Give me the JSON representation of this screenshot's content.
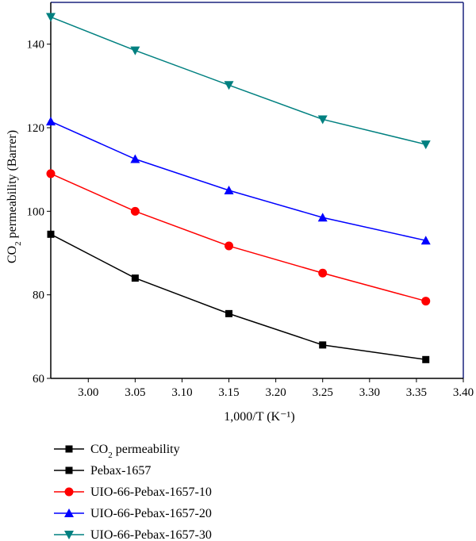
{
  "chart_data": {
    "type": "line",
    "title": "",
    "xlabel": "1,000/T (K⁻¹)",
    "ylabel": "CO2 permeability (Barrer)",
    "ylabel_parts": {
      "pre": "CO",
      "sub": "2",
      "post": " permeability (Barrer)"
    },
    "xlim": [
      2.96,
      3.4
    ],
    "ylim": [
      60,
      150
    ],
    "xticks": [
      "3.00",
      "3.05",
      "3.10",
      "3.15",
      "3.20",
      "3.25",
      "3.30",
      "3.35",
      "3.40"
    ],
    "yticks": [
      "60",
      "80",
      "100",
      "120",
      "140"
    ],
    "grid": false,
    "legend_position": "bottom",
    "legend_header": {
      "pre": "CO",
      "sub": "2",
      "post": " permeability"
    },
    "x": [
      2.96,
      3.05,
      3.15,
      3.25,
      3.36
    ],
    "series": [
      {
        "name": "Pebax-1657",
        "values": [
          94.5,
          84.0,
          75.5,
          68.0,
          64.5
        ],
        "color": "#000000",
        "marker": "square"
      },
      {
        "name": "UIO-66-Pebax-1657-10",
        "values": [
          109.0,
          100.0,
          91.7,
          85.2,
          78.5
        ],
        "color": "#ff0000",
        "marker": "circle"
      },
      {
        "name": "UIO-66-Pebax-1657-20",
        "values": [
          121.5,
          112.5,
          105.0,
          98.5,
          93.0
        ],
        "color": "#0000ff",
        "marker": "triangle-up"
      },
      {
        "name": "UIO-66-Pebax-1657-30",
        "values": [
          146.5,
          138.5,
          130.2,
          122.0,
          116.0
        ],
        "color": "#008080",
        "marker": "triangle-down"
      }
    ],
    "frame_colors": {
      "left_bottom": "#000000",
      "top_right": "#1a237e"
    }
  }
}
